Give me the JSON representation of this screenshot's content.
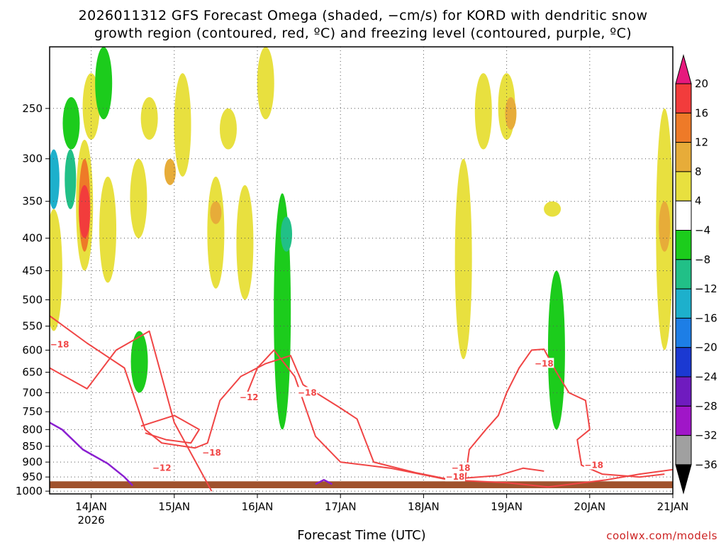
{
  "chart_data": {
    "type": "heatmap",
    "title": "2026011312 GFS Forecast Omega (shaded, −cm/s) for KORD with dendritic snow\ngrowth region (contoured, red, ºC) and freezing level (contoured, purple, ºC)",
    "xlabel": "Forecast Time (UTC)",
    "credit": "coolwx.com/models",
    "x_ticks": [
      {
        "day": 14.0,
        "label": "14JAN"
      },
      {
        "day": 15.0,
        "label": "15JAN"
      },
      {
        "day": 16.0,
        "label": "16JAN"
      },
      {
        "day": 17.0,
        "label": "17JAN"
      },
      {
        "day": 18.0,
        "label": "18JAN"
      },
      {
        "day": 19.0,
        "label": "19JAN"
      },
      {
        "day": 20.0,
        "label": "20JAN"
      },
      {
        "day": 21.0,
        "label": "21JAN"
      }
    ],
    "x_sublabel": "2026",
    "xlim": [
      13.5,
      21.0
    ],
    "y_ticks": [
      250,
      300,
      350,
      400,
      450,
      500,
      550,
      600,
      650,
      700,
      750,
      800,
      850,
      900,
      950,
      1000
    ],
    "ylim": [
      200,
      1010
    ],
    "y_scale": "log-pressure, inverted",
    "grid": true,
    "colorbar": {
      "tick_labels": [
        "20",
        "16",
        "12",
        "8",
        "4",
        "−4",
        "−8",
        "−12",
        "−16",
        "−20",
        "−24",
        "−28",
        "−32",
        "−36"
      ],
      "bins": [
        {
          "lo": 20,
          "hi": 24,
          "color": "#e6197d"
        },
        {
          "lo": 16,
          "hi": 20,
          "color": "#f23c3c"
        },
        {
          "lo": 12,
          "hi": 16,
          "color": "#ee7a28"
        },
        {
          "lo": 8,
          "hi": 12,
          "color": "#e7ac39"
        },
        {
          "lo": 4,
          "hi": 8,
          "color": "#e8e03f"
        },
        {
          "lo": -4,
          "hi": 4,
          "color": "#ffffff"
        },
        {
          "lo": -8,
          "hi": -4,
          "color": "#1ccc1c"
        },
        {
          "lo": -12,
          "hi": -8,
          "color": "#21c087"
        },
        {
          "lo": -16,
          "hi": -12,
          "color": "#1db0cc"
        },
        {
          "lo": -20,
          "hi": -16,
          "color": "#1d7ee6"
        },
        {
          "lo": -24,
          "hi": -20,
          "color": "#1b39d2"
        },
        {
          "lo": -28,
          "hi": -24,
          "color": "#6f1bbf"
        },
        {
          "lo": -32,
          "hi": -28,
          "color": "#a016c8"
        },
        {
          "lo": -36,
          "hi": -32,
          "color": "#a0a0a0"
        },
        {
          "lo": -40,
          "hi": -36,
          "color": "#000000"
        }
      ]
    },
    "omega_regions": [
      {
        "day": 13.55,
        "p0": 290,
        "p1": 360,
        "value": -14
      },
      {
        "day": 13.55,
        "p0": 360,
        "p1": 560,
        "value": 5
      },
      {
        "day": 13.75,
        "p0": 290,
        "p1": 360,
        "value": -12
      },
      {
        "day": 13.76,
        "p0": 240,
        "p1": 290,
        "value": -6
      },
      {
        "day": 13.92,
        "p0": 280,
        "p1": 450,
        "value": 6
      },
      {
        "day": 13.92,
        "p0": 300,
        "p1": 420,
        "value": 12
      },
      {
        "day": 13.92,
        "p0": 330,
        "p1": 400,
        "value": 17
      },
      {
        "day": 14.2,
        "p0": 320,
        "p1": 470,
        "value": 5
      },
      {
        "day": 14.0,
        "p0": 220,
        "p1": 280,
        "value": 5
      },
      {
        "day": 14.15,
        "p0": 200,
        "p1": 260,
        "value": -6
      },
      {
        "day": 14.7,
        "p0": 240,
        "p1": 280,
        "value": 5
      },
      {
        "day": 14.57,
        "p0": 300,
        "p1": 400,
        "value": 5
      },
      {
        "day": 14.58,
        "p0": 560,
        "p1": 700,
        "value": -6
      },
      {
        "day": 14.95,
        "p0": 300,
        "p1": 330,
        "value": 9
      },
      {
        "day": 15.1,
        "p0": 220,
        "p1": 320,
        "value": 5
      },
      {
        "day": 15.5,
        "p0": 320,
        "p1": 480,
        "value": 5
      },
      {
        "day": 15.5,
        "p0": 350,
        "p1": 380,
        "value": 10
      },
      {
        "day": 15.65,
        "p0": 250,
        "p1": 290,
        "value": 5
      },
      {
        "day": 15.85,
        "p0": 330,
        "p1": 500,
        "value": 5
      },
      {
        "day": 16.1,
        "p0": 200,
        "p1": 260,
        "value": 5
      },
      {
        "day": 16.3,
        "p0": 340,
        "p1": 800,
        "value": -6
      },
      {
        "day": 16.35,
        "p0": 370,
        "p1": 420,
        "value": -10
      },
      {
        "day": 18.48,
        "p0": 300,
        "p1": 620,
        "value": 5
      },
      {
        "day": 18.72,
        "p0": 220,
        "p1": 290,
        "value": 5
      },
      {
        "day": 19.0,
        "p0": 220,
        "p1": 280,
        "value": 5
      },
      {
        "day": 19.05,
        "p0": 240,
        "p1": 270,
        "value": 9
      },
      {
        "day": 19.55,
        "p0": 350,
        "p1": 370,
        "value": 5
      },
      {
        "day": 19.6,
        "p0": 450,
        "p1": 800,
        "value": -6
      },
      {
        "day": 20.9,
        "p0": 250,
        "p1": 600,
        "value": 5
      },
      {
        "day": 20.9,
        "p0": 350,
        "p1": 420,
        "value": 9
      }
    ],
    "contours": {
      "dgz_minus12": [
        [
          [
            15.45,
            1000
          ],
          [
            15.0,
            780
          ],
          [
            14.7,
            560
          ],
          [
            14.3,
            600
          ],
          [
            13.95,
            690
          ],
          [
            13.5,
            640
          ]
        ],
        [
          [
            15.88,
            700
          ],
          [
            16.0,
            640
          ],
          [
            16.2,
            600
          ],
          [
            16.45,
            660
          ],
          [
            16.7,
            820
          ],
          [
            17.0,
            900
          ],
          [
            17.6,
            920
          ],
          [
            18.3,
            960
          ],
          [
            19.0,
            970
          ],
          [
            19.5,
            985
          ],
          [
            20.2,
            960
          ],
          [
            20.6,
            940
          ],
          [
            21.0,
            925
          ]
        ]
      ],
      "dgz_minus18": [
        [
          [
            13.5,
            530
          ],
          [
            13.95,
            585
          ],
          [
            14.4,
            640
          ],
          [
            14.65,
            800
          ],
          [
            14.85,
            840
          ],
          [
            15.25,
            855
          ],
          [
            15.4,
            840
          ],
          [
            15.55,
            720
          ],
          [
            15.8,
            660
          ],
          [
            16.1,
            630
          ],
          [
            16.4,
            612
          ],
          [
            16.55,
            680
          ],
          [
            17.0,
            740
          ],
          [
            17.2,
            770
          ],
          [
            17.4,
            900
          ],
          [
            17.9,
            935
          ],
          [
            18.3,
            958
          ],
          [
            18.9,
            945
          ],
          [
            19.2,
            920
          ],
          [
            19.45,
            930
          ]
        ],
        [
          [
            18.5,
            960
          ],
          [
            18.55,
            860
          ],
          [
            18.75,
            800
          ],
          [
            18.9,
            760
          ],
          [
            19.0,
            700
          ],
          [
            19.15,
            640
          ],
          [
            19.3,
            600
          ],
          [
            19.45,
            598
          ],
          [
            19.6,
            650
          ],
          [
            19.75,
            700
          ],
          [
            19.95,
            720
          ],
          [
            20.0,
            800
          ],
          [
            19.85,
            830
          ],
          [
            19.9,
            910
          ],
          [
            20.15,
            940
          ],
          [
            20.6,
            950
          ],
          [
            20.9,
            940
          ]
        ],
        [
          [
            14.6,
            790
          ],
          [
            15.0,
            760
          ],
          [
            15.3,
            800
          ],
          [
            15.2,
            840
          ],
          [
            14.9,
            830
          ],
          [
            14.65,
            810
          ]
        ]
      ],
      "freezing_level_0": [
        [
          [
            13.5,
            780
          ],
          [
            13.65,
            800
          ],
          [
            13.9,
            860
          ],
          [
            14.2,
            905
          ],
          [
            14.4,
            950
          ],
          [
            14.5,
            980
          ]
        ],
        [
          [
            16.7,
            975
          ],
          [
            16.8,
            960
          ],
          [
            16.9,
            975
          ]
        ]
      ]
    },
    "contour_labels": [
      {
        "text": "−18",
        "day": 13.62,
        "p": 588
      },
      {
        "text": "−18",
        "day": 15.45,
        "p": 870
      },
      {
        "text": "−12",
        "day": 14.85,
        "p": 920
      },
      {
        "text": "−12",
        "day": 15.9,
        "p": 712
      },
      {
        "text": "−18",
        "day": 16.6,
        "p": 700
      },
      {
        "text": "−18",
        "day": 18.45,
        "p": 920
      },
      {
        "text": "−18",
        "day": 18.38,
        "p": 950
      },
      {
        "text": "−18",
        "day": 19.45,
        "p": 630
      },
      {
        "text": "−18",
        "day": 20.05,
        "p": 910
      }
    ],
    "ground_color": "#a0522d",
    "ground_level_p": 965
  }
}
